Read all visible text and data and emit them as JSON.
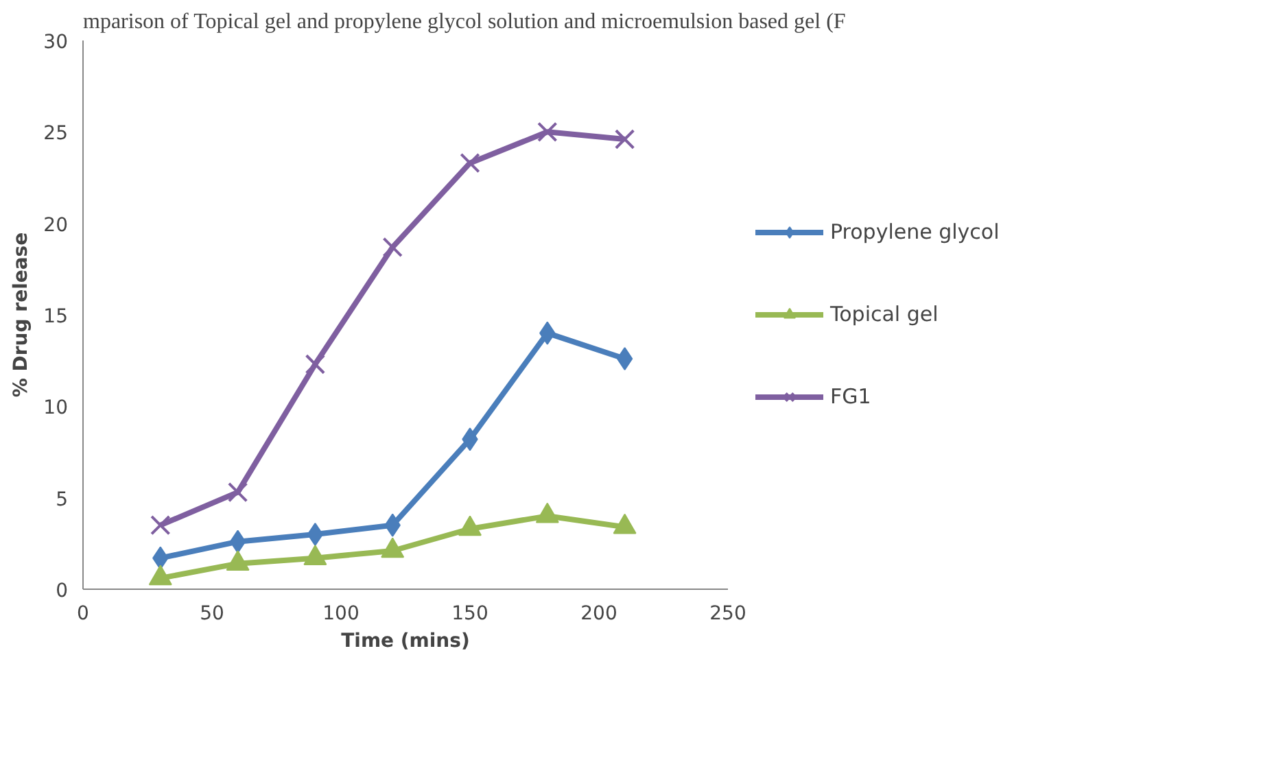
{
  "chart_data": {
    "type": "line",
    "title": "mparison of Topical gel and propylene glycol solution and microemulsion based gel (F",
    "xlabel": "Time (mins)",
    "ylabel": "% Drug release",
    "x": [
      30,
      60,
      90,
      120,
      150,
      180,
      210
    ],
    "series": [
      {
        "name": "Propylene glycol",
        "color": "#4a7ebb",
        "marker": "diamond",
        "values": [
          1.7,
          2.6,
          3.0,
          3.5,
          8.2,
          14.0,
          12.6
        ]
      },
      {
        "name": "Topical gel",
        "color": "#98b954",
        "marker": "triangle",
        "values": [
          0.6,
          1.4,
          1.7,
          2.1,
          3.3,
          4.0,
          3.4
        ]
      },
      {
        "name": "FG1",
        "color": "#7f5fa0",
        "marker": "cross",
        "values": [
          3.5,
          5.3,
          12.3,
          18.7,
          23.3,
          25.0,
          24.6
        ]
      }
    ],
    "xlim": [
      0,
      250
    ],
    "xticks": [
      0,
      50,
      100,
      150,
      200,
      250
    ],
    "ylim": [
      0,
      30
    ],
    "yticks": [
      0,
      5,
      10,
      15,
      20,
      25,
      30
    ],
    "grid": false,
    "legend": "right"
  }
}
